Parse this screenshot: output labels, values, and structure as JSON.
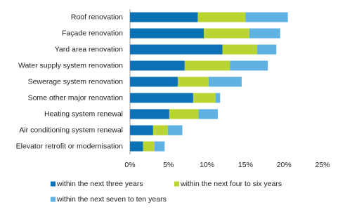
{
  "chart_data": {
    "type": "bar",
    "orientation": "horizontal",
    "stacked": true,
    "grid": false,
    "categories": [
      "Roof renovation",
      "Façade renovation",
      "Yard area renovation",
      "Water supply system renovation",
      "Sewerage system renovation",
      "Some other major renovation",
      "Heating system renewal",
      "Air conditioning system renewal",
      "Elevator retrofit or modernisation"
    ],
    "series": [
      {
        "name": "within the next three years",
        "color": "#0b72b5",
        "values": [
          8.8,
          9.6,
          12.0,
          7.1,
          6.2,
          8.2,
          5.1,
          3.0,
          1.7
        ]
      },
      {
        "name": "within the next four to six years",
        "color": "#b9d531",
        "values": [
          6.2,
          5.9,
          4.5,
          5.9,
          4.0,
          2.9,
          3.8,
          1.9,
          1.5
        ]
      },
      {
        "name": "within the next seven to ten years",
        "color": "#5eb1e1",
        "values": [
          5.5,
          4.0,
          2.5,
          4.9,
          4.3,
          0.6,
          2.5,
          1.9,
          1.3
        ]
      }
    ],
    "xlim": [
      0,
      25
    ],
    "xticks": [
      {
        "value": 0,
        "label": "0%"
      },
      {
        "value": 5,
        "label": "5%"
      },
      {
        "value": 10,
        "label": "10%"
      },
      {
        "value": 15,
        "label": "15%"
      },
      {
        "value": 20,
        "label": "20%"
      },
      {
        "value": 25,
        "label": "25%"
      }
    ]
  }
}
